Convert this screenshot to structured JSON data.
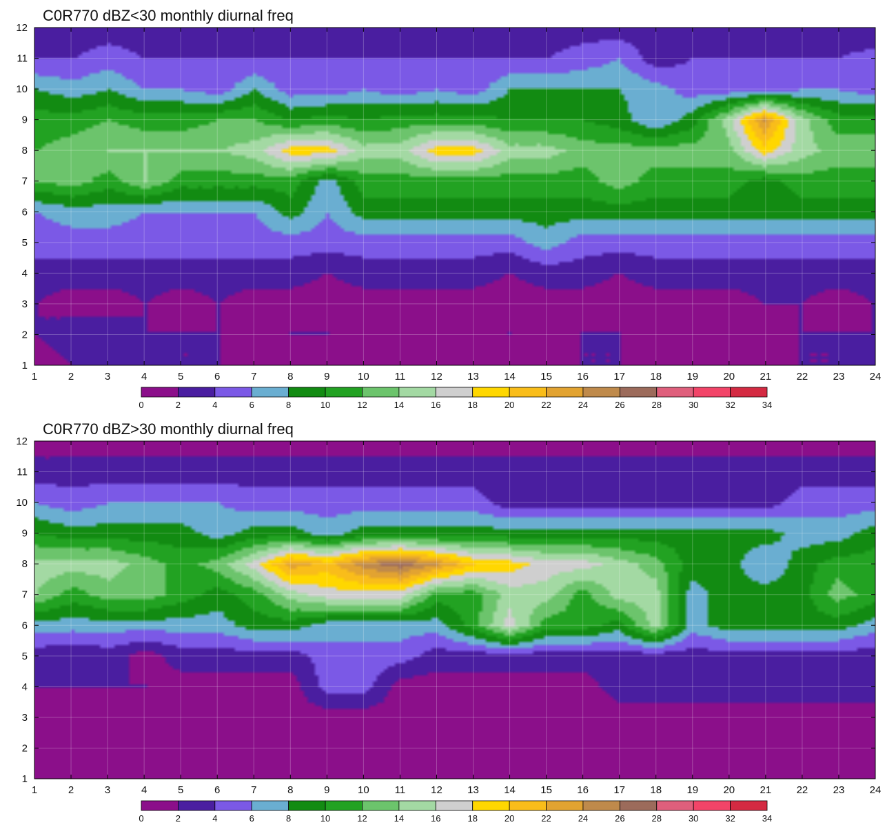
{
  "chart_data": [
    {
      "type": "heatmap",
      "title": "C0R770 dBZ<30 monthly diurnal freq",
      "xlabel": "",
      "ylabel": "",
      "x": [
        1,
        2,
        3,
        4,
        5,
        6,
        7,
        8,
        9,
        10,
        11,
        12,
        13,
        14,
        15,
        16,
        17,
        18,
        19,
        20,
        21,
        22,
        23,
        24
      ],
      "y": [
        1,
        2,
        3,
        4,
        5,
        6,
        7,
        8,
        9,
        10,
        11,
        12
      ],
      "xlim": [
        1,
        24
      ],
      "ylim": [
        1,
        12
      ],
      "grid": true,
      "colorbar": {
        "levels": [
          0,
          2,
          4,
          6,
          8,
          10,
          12,
          14,
          16,
          18,
          20,
          22,
          24,
          26,
          28,
          30,
          32,
          34
        ],
        "colors": [
          "#8b0f8a",
          "#4a1ea0",
          "#7b59e6",
          "#6aaed1",
          "#128b12",
          "#22a222",
          "#6cc46c",
          "#a3d9a3",
          "#cfcfcf",
          "#ffd700",
          "#f9bd1a",
          "#e2a331",
          "#bf8a4b",
          "#9c6b5b",
          "#df5f7c",
          "#f24468",
          "#d42a42"
        ]
      },
      "values": [
        [
          1,
          2,
          3,
          2,
          2,
          2,
          1,
          1,
          1,
          1,
          1,
          1,
          1,
          1,
          1,
          2,
          2,
          1,
          1,
          1,
          1,
          2,
          2,
          3
        ],
        [
          2,
          3,
          3,
          2,
          2,
          2,
          1,
          2,
          2,
          1,
          1,
          1,
          1,
          2,
          1,
          2,
          2,
          1,
          1,
          1,
          1,
          2,
          2,
          2
        ],
        [
          2,
          1,
          1,
          2,
          1,
          2,
          1,
          1,
          1,
          1,
          1,
          1,
          1,
          1,
          1,
          1,
          1,
          1,
          1,
          1,
          2,
          2,
          1,
          2
        ],
        [
          3,
          3,
          3,
          3,
          3,
          3,
          3,
          3,
          2,
          3,
          3,
          3,
          3,
          2,
          3,
          3,
          2,
          3,
          3,
          3,
          3,
          3,
          3,
          3
        ],
        [
          5,
          5,
          5,
          5,
          5,
          5,
          5,
          5,
          5,
          5,
          5,
          5,
          5,
          5,
          7,
          5,
          5,
          5,
          5,
          5,
          5,
          5,
          5,
          5
        ],
        [
          6,
          7,
          7,
          6,
          6,
          6,
          6,
          9,
          6,
          9,
          9,
          9,
          9,
          9,
          9,
          9,
          9,
          9,
          9,
          9,
          9,
          9,
          9,
          9
        ],
        [
          12,
          13,
          11,
          14,
          11,
          11,
          11,
          11,
          7,
          11,
          11,
          11,
          11,
          11,
          11,
          11,
          13,
          11,
          11,
          11,
          9,
          11,
          11,
          11
        ],
        [
          12,
          13,
          14,
          14,
          14,
          14,
          15,
          19,
          19,
          15,
          15,
          19,
          19,
          15,
          15,
          13,
          13,
          13,
          13,
          13,
          19,
          15,
          13,
          13
        ],
        [
          11,
          11,
          12,
          11,
          11,
          12,
          12,
          10,
          11,
          10,
          11,
          11,
          11,
          10,
          10,
          10,
          9,
          6,
          9,
          15,
          24,
          15,
          11,
          11
        ],
        [
          8,
          7,
          8,
          6,
          6,
          5,
          8,
          5,
          5,
          6,
          5,
          6,
          5,
          8,
          8,
          8,
          8,
          7,
          5,
          5,
          5,
          6,
          6,
          5
        ],
        [
          4,
          4,
          5,
          4,
          4,
          4,
          4,
          4,
          4,
          4,
          4,
          4,
          4,
          4,
          4,
          5,
          6,
          3,
          4,
          4,
          4,
          4,
          4,
          5
        ],
        [
          3,
          3,
          3,
          3,
          2,
          2,
          2,
          2,
          2,
          2,
          2,
          2,
          2,
          3,
          3,
          3,
          3,
          3,
          3,
          3,
          3,
          3,
          3,
          2
        ]
      ]
    },
    {
      "type": "heatmap",
      "title": "C0R770 dBZ>30 monthly diurnal freq",
      "xlabel": "",
      "ylabel": "",
      "x": [
        1,
        2,
        3,
        4,
        5,
        6,
        7,
        8,
        9,
        10,
        11,
        12,
        13,
        14,
        15,
        16,
        17,
        18,
        19,
        20,
        21,
        22,
        23,
        24
      ],
      "y": [
        1,
        2,
        3,
        4,
        5,
        6,
        7,
        8,
        9,
        10,
        11,
        12
      ],
      "xlim": [
        1,
        24
      ],
      "ylim": [
        1,
        12
      ],
      "grid": true,
      "colorbar": {
        "levels": [
          0,
          2,
          4,
          6,
          8,
          10,
          12,
          14,
          16,
          18,
          20,
          22,
          24,
          26,
          28,
          30,
          32,
          34
        ],
        "colors": [
          "#8b0f8a",
          "#4a1ea0",
          "#7b59e6",
          "#6aaed1",
          "#128b12",
          "#22a222",
          "#6cc46c",
          "#a3d9a3",
          "#cfcfcf",
          "#ffd700",
          "#f9bd1a",
          "#e2a331",
          "#bf8a4b",
          "#9c6b5b",
          "#df5f7c",
          "#f24468",
          "#d42a42"
        ]
      },
      "values": [
        [
          1,
          1,
          1,
          1,
          1,
          1,
          1,
          1,
          1,
          1,
          1,
          1,
          1,
          1,
          1,
          1,
          1,
          1,
          1,
          1,
          1,
          1,
          1,
          1
        ],
        [
          1,
          1,
          1,
          1,
          1,
          1,
          1,
          1,
          1,
          1,
          1,
          1,
          1,
          1,
          1,
          1,
          1,
          1,
          1,
          1,
          1,
          1,
          1,
          1
        ],
        [
          1,
          1,
          1,
          1,
          1,
          1,
          1,
          1,
          1,
          1,
          1,
          1,
          1,
          1,
          1,
          1,
          1,
          1,
          1,
          1,
          1,
          1,
          1,
          1
        ],
        [
          2,
          2,
          2,
          2,
          1,
          1,
          1,
          1,
          5,
          5,
          1,
          1,
          1,
          1,
          1,
          1,
          3,
          3,
          3,
          3,
          3,
          3,
          3,
          3
        ],
        [
          3,
          2,
          3,
          1,
          3,
          3,
          3,
          3,
          5,
          5,
          5,
          3,
          3,
          3,
          3,
          3,
          3,
          3,
          3,
          3,
          3,
          3,
          3,
          3
        ],
        [
          7,
          7,
          7,
          7,
          7,
          7,
          9,
          9,
          7,
          7,
          7,
          7,
          11,
          17,
          11,
          11,
          9,
          15,
          7,
          9,
          9,
          9,
          9,
          7
        ],
        [
          14,
          11,
          13,
          13,
          11,
          9,
          11,
          15,
          17,
          17,
          17,
          11,
          11,
          15,
          15,
          11,
          15,
          15,
          7,
          9,
          9,
          9,
          13,
          11
        ],
        [
          15,
          15,
          15,
          13,
          11,
          13,
          17,
          23,
          21,
          25,
          27,
          24,
          20,
          19,
          17,
          17,
          15,
          13,
          9,
          9,
          6,
          9,
          11,
          11
        ],
        [
          10,
          9,
          9,
          9,
          9,
          7,
          9,
          9,
          7,
          9,
          9,
          9,
          9,
          9,
          9,
          9,
          9,
          9,
          9,
          9,
          9,
          7,
          7,
          9
        ],
        [
          6,
          5,
          6,
          6,
          6,
          6,
          5,
          5,
          5,
          5,
          5,
          5,
          5,
          3,
          3,
          3,
          3,
          3,
          3,
          3,
          3,
          5,
          5,
          5
        ],
        [
          3,
          3,
          3,
          3,
          3,
          3,
          3,
          3,
          3,
          3,
          3,
          3,
          3,
          3,
          3,
          3,
          3,
          3,
          3,
          3,
          3,
          3,
          3,
          3
        ],
        [
          1,
          1,
          1,
          1,
          1,
          1,
          1,
          1,
          1,
          1,
          1,
          1,
          1,
          1,
          1,
          1,
          1,
          1,
          1,
          1,
          1,
          1,
          1,
          1
        ]
      ]
    }
  ]
}
